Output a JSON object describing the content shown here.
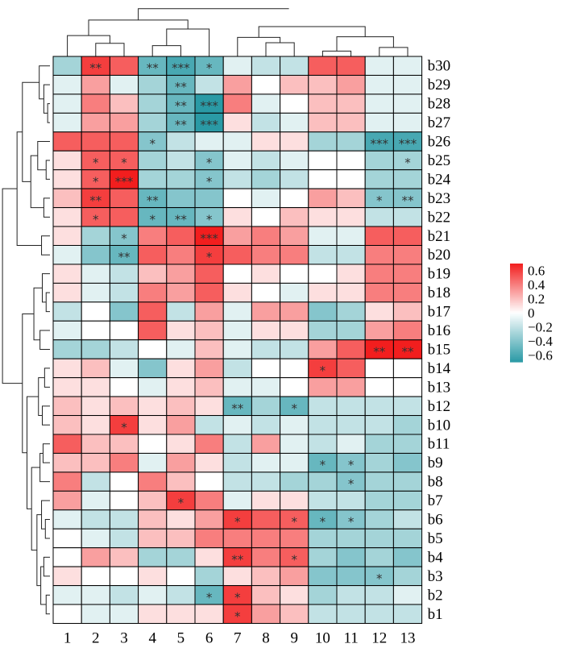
{
  "chart_data": {
    "type": "heatmap",
    "rows": [
      "b30",
      "b29",
      "b28",
      "b27",
      "b26",
      "b25",
      "b24",
      "b23",
      "b22",
      "b21",
      "b20",
      "b19",
      "b18",
      "b17",
      "b16",
      "b15",
      "b14",
      "b13",
      "b12",
      "b10",
      "b11",
      "b9",
      "b8",
      "b7",
      "b6",
      "b5",
      "b4",
      "b3",
      "b2",
      "b1"
    ],
    "columns": [
      "1",
      "2",
      "3",
      "4",
      "5",
      "6",
      "7",
      "8",
      "9",
      "10",
      "11",
      "12",
      "13"
    ],
    "values": [
      [
        -0.3,
        0.6,
        0.5,
        -0.5,
        -0.6,
        -0.5,
        -0.1,
        -0.2,
        -0.2,
        0.5,
        0.5,
        -0.1,
        -0.1
      ],
      [
        -0.1,
        0.3,
        -0.1,
        -0.3,
        -0.5,
        -0.2,
        0.3,
        0.0,
        0.2,
        0.2,
        0.3,
        -0.1,
        -0.1
      ],
      [
        -0.1,
        0.4,
        0.2,
        -0.3,
        -0.5,
        -0.7,
        0.4,
        -0.1,
        0.0,
        0.2,
        0.2,
        -0.1,
        -0.1
      ],
      [
        -0.1,
        0.3,
        0.3,
        -0.3,
        -0.5,
        -0.7,
        0.1,
        -0.2,
        -0.1,
        0.2,
        0.2,
        -0.1,
        -0.1
      ],
      [
        0.5,
        0.5,
        0.5,
        -0.4,
        -0.2,
        -0.1,
        -0.1,
        0.1,
        0.1,
        -0.3,
        -0.3,
        -0.6,
        -0.6
      ],
      [
        0.1,
        0.5,
        0.5,
        -0.3,
        -0.2,
        -0.4,
        -0.1,
        -0.2,
        -0.1,
        0.0,
        0.0,
        -0.3,
        -0.3
      ],
      [
        0.1,
        0.5,
        0.8,
        -0.3,
        -0.3,
        -0.4,
        -0.2,
        -0.3,
        -0.2,
        0.0,
        0.0,
        -0.3,
        -0.3
      ],
      [
        0.2,
        0.6,
        0.5,
        -0.5,
        -0.4,
        -0.4,
        0.0,
        -0.1,
        0.0,
        0.3,
        0.2,
        -0.4,
        -0.4
      ],
      [
        0.1,
        0.5,
        0.5,
        -0.5,
        -0.5,
        -0.4,
        0.1,
        0.0,
        0.2,
        0.1,
        0.1,
        -0.2,
        -0.2
      ],
      [
        0.1,
        -0.3,
        -0.4,
        0.4,
        0.5,
        0.7,
        0.3,
        0.4,
        0.3,
        -0.1,
        -0.1,
        0.5,
        0.5
      ],
      [
        -0.1,
        -0.4,
        -0.5,
        0.5,
        0.4,
        0.6,
        0.5,
        0.4,
        0.4,
        -0.2,
        -0.2,
        0.4,
        0.4
      ],
      [
        0.1,
        -0.1,
        -0.2,
        0.2,
        0.3,
        0.5,
        0.0,
        0.1,
        0.0,
        0.0,
        0.1,
        0.4,
        0.4
      ],
      [
        0.1,
        -0.1,
        -0.2,
        0.4,
        0.3,
        0.5,
        0.1,
        0.0,
        -0.1,
        0.1,
        0.1,
        0.4,
        0.4
      ],
      [
        -0.2,
        0.0,
        -0.4,
        0.5,
        -0.2,
        0.3,
        -0.1,
        0.3,
        0.3,
        -0.4,
        -0.3,
        0.1,
        0.2
      ],
      [
        -0.1,
        0.0,
        0.0,
        0.5,
        0.1,
        0.2,
        -0.1,
        0.1,
        0.1,
        -0.3,
        -0.3,
        0.3,
        0.4
      ],
      [
        -0.3,
        -0.3,
        -0.2,
        0.0,
        -0.1,
        0.2,
        -0.1,
        -0.2,
        -0.2,
        0.3,
        0.5,
        0.7,
        0.7
      ],
      [
        0.1,
        0.2,
        -0.1,
        -0.4,
        0.1,
        0.3,
        -0.2,
        0.0,
        0.0,
        0.6,
        0.5,
        0.0,
        0.0
      ],
      [
        0.1,
        0.1,
        0.0,
        -0.1,
        0.1,
        0.2,
        -0.1,
        -0.1,
        0.0,
        0.3,
        0.3,
        0.0,
        0.0
      ],
      [
        0.2,
        0.1,
        0.2,
        0.1,
        0.2,
        0.1,
        -0.5,
        -0.3,
        -0.5,
        -0.2,
        -0.2,
        -0.2,
        -0.2
      ],
      [
        0.2,
        0.1,
        0.6,
        0.1,
        0.3,
        -0.2,
        -0.1,
        -0.2,
        -0.1,
        -0.2,
        -0.2,
        -0.2,
        -0.3
      ],
      [
        0.5,
        0.2,
        0.2,
        0.0,
        0.1,
        0.4,
        -0.2,
        0.3,
        -0.1,
        -0.2,
        -0.1,
        -0.3,
        -0.3
      ],
      [
        0.2,
        0.2,
        0.4,
        -0.1,
        0.3,
        0.1,
        -0.2,
        -0.1,
        -0.1,
        -0.5,
        -0.4,
        -0.3,
        -0.4
      ],
      [
        0.4,
        -0.2,
        0.0,
        0.4,
        0.2,
        0.0,
        -0.2,
        -0.2,
        -0.3,
        -0.3,
        -0.4,
        -0.3,
        -0.3
      ],
      [
        0.3,
        -0.1,
        0.0,
        0.2,
        0.6,
        0.4,
        -0.1,
        0.1,
        0.1,
        -0.2,
        -0.2,
        -0.3,
        -0.3
      ],
      [
        -0.1,
        -0.2,
        -0.2,
        0.2,
        0.1,
        0.3,
        0.6,
        0.5,
        0.5,
        -0.5,
        -0.4,
        -0.3,
        -0.2
      ],
      [
        0.0,
        -0.1,
        -0.2,
        0.2,
        0.2,
        0.4,
        0.4,
        0.4,
        0.4,
        -0.3,
        -0.3,
        -0.3,
        -0.3
      ],
      [
        0.0,
        0.3,
        0.2,
        -0.3,
        -0.3,
        0.1,
        0.6,
        0.4,
        0.5,
        -0.3,
        -0.4,
        -0.3,
        -0.4
      ],
      [
        0.1,
        0.0,
        0.0,
        0.1,
        0.0,
        -0.3,
        0.1,
        0.2,
        0.3,
        -0.4,
        -0.4,
        -0.4,
        -0.3
      ],
      [
        -0.1,
        -0.1,
        -0.2,
        -0.1,
        -0.2,
        -0.5,
        0.6,
        0.2,
        0.1,
        -0.3,
        -0.2,
        -0.2,
        -0.1
      ],
      [
        0.0,
        -0.1,
        -0.1,
        0.1,
        0.1,
        0.1,
        0.6,
        0.3,
        0.2,
        -0.2,
        -0.2,
        -0.2,
        -0.2
      ]
    ],
    "significance": [
      [
        "",
        "**",
        "",
        "**",
        "***",
        "*",
        "",
        "",
        "",
        "",
        "",
        "",
        ""
      ],
      [
        "",
        "",
        "",
        "",
        "**",
        "",
        "",
        "",
        "",
        "",
        "",
        "",
        ""
      ],
      [
        "",
        "",
        "",
        "",
        "**",
        "***",
        "",
        "",
        "",
        "",
        "",
        "",
        ""
      ],
      [
        "",
        "",
        "",
        "",
        "**",
        "***",
        "",
        "",
        "",
        "",
        "",
        "",
        ""
      ],
      [
        "",
        "",
        "",
        "*",
        "",
        "",
        "",
        "",
        "",
        "",
        "",
        "***",
        "***"
      ],
      [
        "",
        "*",
        "*",
        "",
        "",
        "*",
        "",
        "",
        "",
        "",
        "",
        "",
        "*"
      ],
      [
        "",
        "*",
        "***",
        "",
        "",
        "*",
        "",
        "",
        "",
        "",
        "",
        "",
        ""
      ],
      [
        "",
        "**",
        "",
        "**",
        "",
        "",
        "",
        "",
        "",
        "",
        "",
        "*",
        "**"
      ],
      [
        "",
        "*",
        "",
        "*",
        "**",
        "*",
        "",
        "",
        "",
        "",
        "",
        "",
        ""
      ],
      [
        "",
        "",
        "*",
        "",
        "",
        "***",
        "",
        "",
        "",
        "",
        "",
        "",
        ""
      ],
      [
        "",
        "",
        "**",
        "",
        "",
        "*",
        "",
        "",
        "",
        "",
        "",
        "",
        ""
      ],
      [
        "",
        "",
        "",
        "",
        "",
        "",
        "",
        "",
        "",
        "",
        "",
        "",
        ""
      ],
      [
        "",
        "",
        "",
        "",
        "",
        "",
        "",
        "",
        "",
        "",
        "",
        "",
        ""
      ],
      [
        "",
        "",
        "",
        "",
        "",
        "",
        "",
        "",
        "",
        "",
        "",
        "",
        ""
      ],
      [
        "",
        "",
        "",
        "",
        "",
        "",
        "",
        "",
        "",
        "",
        "",
        "",
        ""
      ],
      [
        "",
        "",
        "",
        "",
        "",
        "",
        "",
        "",
        "",
        "",
        "",
        "**",
        "**"
      ],
      [
        "",
        "",
        "",
        "",
        "",
        "",
        "",
        "",
        "",
        "*",
        "",
        "",
        ""
      ],
      [
        "",
        "",
        "",
        "",
        "",
        "",
        "",
        "",
        "",
        "",
        "",
        "",
        ""
      ],
      [
        "",
        "",
        "",
        "",
        "",
        "",
        "**",
        "",
        "*",
        "",
        "",
        "",
        ""
      ],
      [
        "",
        "",
        "*",
        "",
        "",
        "",
        "",
        "",
        "",
        "",
        "",
        "",
        ""
      ],
      [
        "",
        "",
        "",
        "",
        "",
        "",
        "",
        "",
        "",
        "",
        "",
        "",
        ""
      ],
      [
        "",
        "",
        "",
        "",
        "",
        "",
        "",
        "",
        "",
        "*",
        "*",
        "",
        ""
      ],
      [
        "",
        "",
        "",
        "",
        "",
        "",
        "",
        "",
        "",
        "",
        "*",
        "",
        ""
      ],
      [
        "",
        "",
        "",
        "",
        "*",
        "",
        "",
        "",
        "",
        "",
        "",
        "",
        ""
      ],
      [
        "",
        "",
        "",
        "",
        "",
        "",
        "*",
        "",
        "*",
        "*",
        "*",
        "",
        ""
      ],
      [
        "",
        "",
        "",
        "",
        "",
        "",
        "",
        "",
        "",
        "",
        "",
        "",
        ""
      ],
      [
        "",
        "",
        "",
        "",
        "",
        "",
        "**",
        "",
        "*",
        "",
        "",
        "",
        ""
      ],
      [
        "",
        "",
        "",
        "",
        "",
        "",
        "",
        "",
        "",
        "",
        "",
        "*",
        ""
      ],
      [
        "",
        "",
        "",
        "",
        "",
        "*",
        "*",
        "",
        "",
        "",
        "",
        "",
        ""
      ],
      [
        "",
        "",
        "",
        "",
        "",
        "",
        "*",
        "",
        "",
        "",
        "",
        "",
        ""
      ]
    ],
    "legend": {
      "ticks": [
        "0.6",
        "0.4",
        "0.2",
        "0",
        "−0.2",
        "−0.4",
        "−0.6"
      ],
      "tick_values": [
        0.6,
        0.4,
        0.2,
        0,
        -0.2,
        -0.4,
        -0.6
      ],
      "range": [
        -0.7,
        0.7
      ],
      "colors": {
        "low": "#2a9aa5",
        "mid": "#ffffff",
        "high": "#f21e1e"
      },
      "placement": "right"
    },
    "dendrogram_top": true,
    "dendrogram_left": true
  }
}
